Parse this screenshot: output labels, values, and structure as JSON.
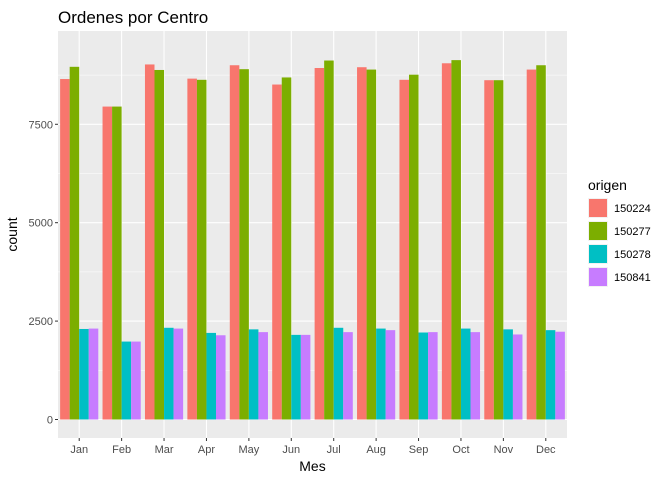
{
  "chart_data": {
    "type": "bar",
    "title": "Ordenes por Centro",
    "xlabel": "Mes",
    "ylabel": "count",
    "categories": [
      "Jan",
      "Feb",
      "Mar",
      "Apr",
      "May",
      "Jun",
      "Jul",
      "Aug",
      "Sep",
      "Oct",
      "Nov",
      "Dec"
    ],
    "ylim": [
      -470,
      9870
    ],
    "yticks": [
      0,
      2500,
      5000,
      7500
    ],
    "grid": true,
    "legend_title": "origen",
    "legend_position": "right",
    "series": [
      {
        "name": "150224",
        "color": "#F8766D",
        "values": [
          8650,
          7950,
          9020,
          8660,
          9000,
          8510,
          8930,
          8950,
          8630,
          9050,
          8620,
          8890
        ]
      },
      {
        "name": "150277",
        "color": "#7CAE00",
        "values": [
          8960,
          7950,
          8880,
          8630,
          8900,
          8690,
          9120,
          8890,
          8760,
          9130,
          8620,
          9000
        ]
      },
      {
        "name": "150278",
        "color": "#00BFC4",
        "values": [
          2300,
          1980,
          2330,
          2200,
          2290,
          2150,
          2330,
          2310,
          2210,
          2310,
          2290,
          2270
        ]
      },
      {
        "name": "150841",
        "color": "#C77CFF",
        "values": [
          2310,
          1980,
          2310,
          2140,
          2220,
          2150,
          2220,
          2270,
          2220,
          2220,
          2160,
          2230
        ]
      }
    ]
  }
}
